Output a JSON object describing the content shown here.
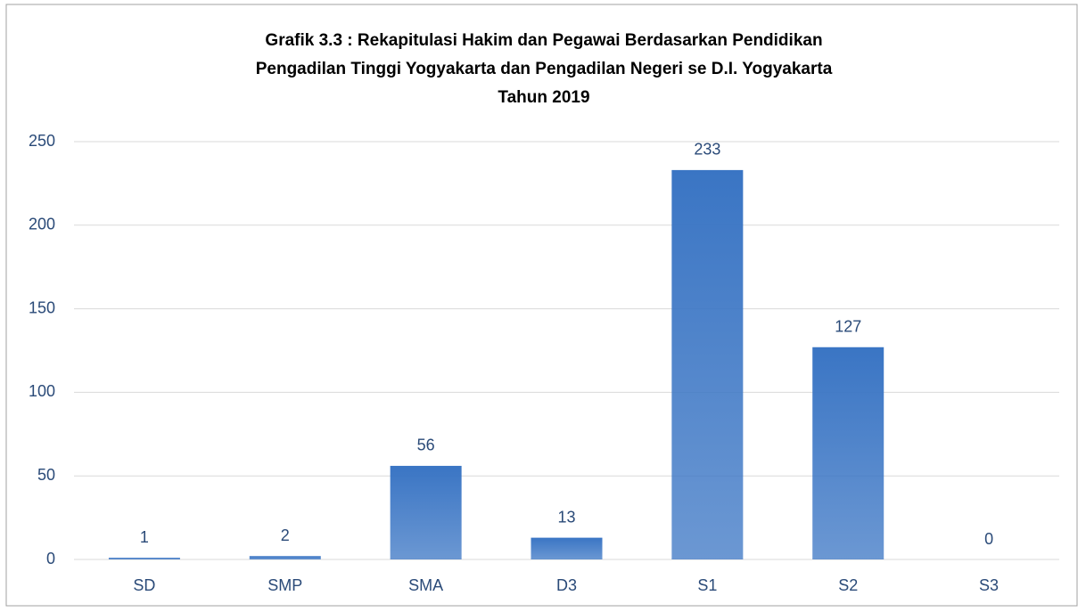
{
  "chart_data": {
    "type": "bar",
    "title": [
      "Grafik 3.3 : Rekapitulasi Hakim dan Pegawai Berdasarkan Pendidikan",
      "Pengadilan Tinggi Yogyakarta dan Pengadilan Negeri se D.I. Yogyakarta",
      "Tahun 2019"
    ],
    "categories": [
      "SD",
      "SMP",
      "SMA",
      "D3",
      "S1",
      "S2",
      "S3"
    ],
    "values": [
      1,
      2,
      56,
      13,
      233,
      127,
      0
    ],
    "color": "#3a75c4",
    "ylim": [
      0,
      250
    ],
    "yticks": [
      0,
      50,
      100,
      150,
      200,
      250
    ],
    "grid": true
  }
}
